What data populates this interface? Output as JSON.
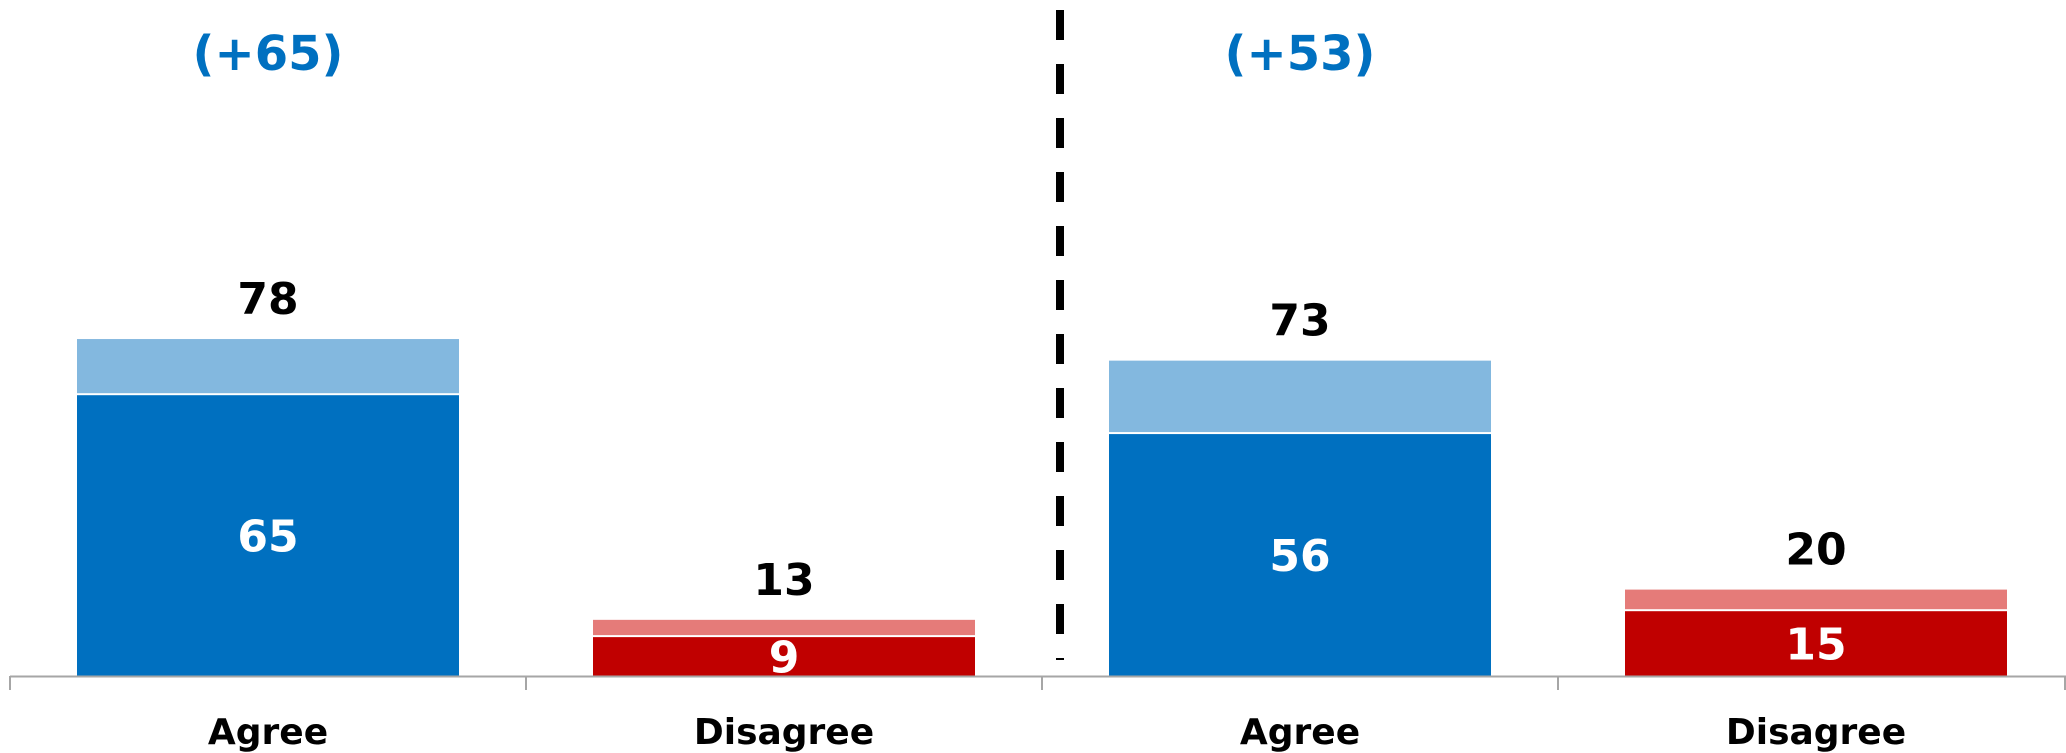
{
  "chart_data": {
    "type": "bar",
    "stacked": true,
    "categories": [
      "Agree",
      "Disagree",
      "Agree",
      "Disagree"
    ],
    "groups": [
      {
        "net_label": "(+65)",
        "bars": [
          {
            "category": "Agree",
            "strong": 65,
            "total": 78,
            "strong_label": "65",
            "total_label": "78"
          },
          {
            "category": "Disagree",
            "strong": 9,
            "total": 13,
            "strong_label": "9",
            "total_label": "13"
          }
        ]
      },
      {
        "net_label": "(+53)",
        "bars": [
          {
            "category": "Agree",
            "strong": 56,
            "total": 73,
            "strong_label": "56",
            "total_label": "73"
          },
          {
            "category": "Disagree",
            "strong": 15,
            "total": 20,
            "strong_label": "15",
            "total_label": "20"
          }
        ]
      }
    ],
    "ylim": [
      0,
      100
    ],
    "grid": false,
    "legend": "none",
    "colors": {
      "agree_strong": "#0070C0",
      "agree_soft": "#83B8DF",
      "disagree_strong": "#C00000",
      "disagree_soft": "#E57B79",
      "net_label": "#0070C0",
      "axis": "#A6A6A6",
      "divider": "#000000"
    }
  }
}
